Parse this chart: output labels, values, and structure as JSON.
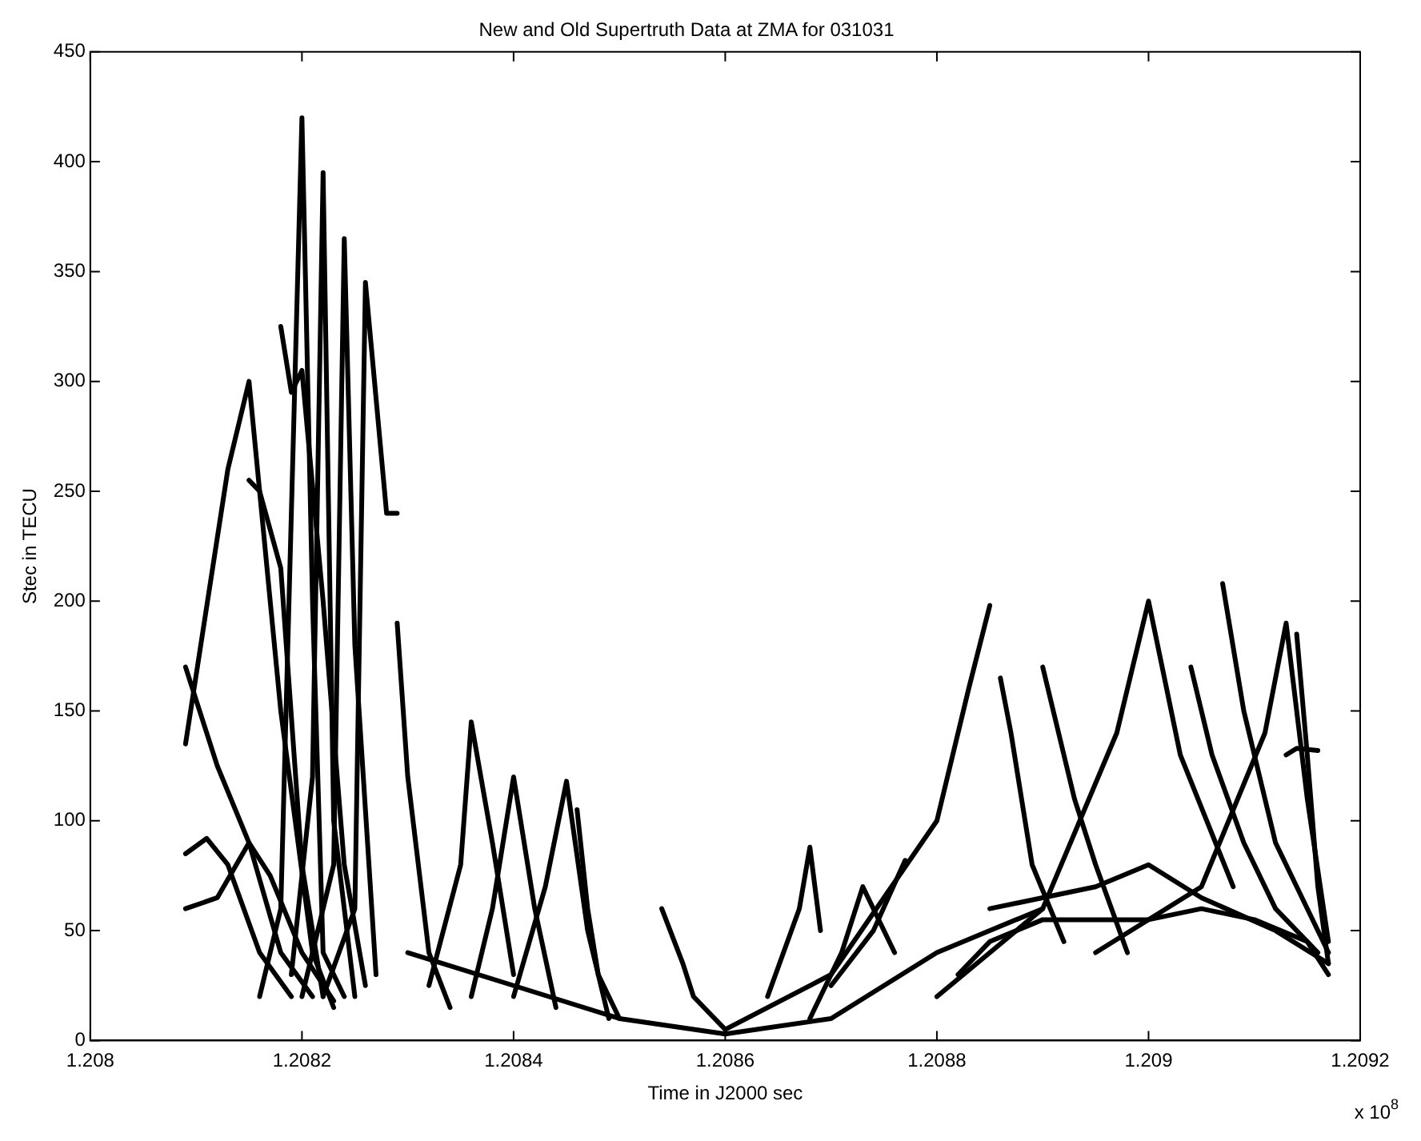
{
  "chart_data": {
    "type": "line",
    "title": "New and Old Supertruth Data at ZMA for 031031",
    "xlabel": "Time in J2000 sec",
    "ylabel": "Stec in TECU",
    "annotations": [
      "x 10$^{8}$"
    ],
    "color": "#000000",
    "marker": "none",
    "line_style": "solid",
    "grid": false,
    "legend": false,
    "xlim": [
      1.208,
      1.2092
    ],
    "xticks": [
      1.208,
      1.2082,
      1.2084,
      1.2086,
      1.2088,
      1.209,
      1.2092
    ],
    "ylim": [
      0,
      450
    ],
    "yticks": [
      0,
      50,
      100,
      150,
      200,
      250,
      300,
      350,
      400,
      450
    ],
    "series": [
      {
        "x": [
          1.20809,
          1.20813,
          1.20815,
          1.20818,
          1.20821,
          1.20823
        ],
        "values": [
          135,
          260,
          300,
          150,
          40,
          15
        ]
      },
      {
        "x": [
          1.20818,
          1.20819,
          1.2082,
          1.20822,
          1.20824,
          1.20826
        ],
        "values": [
          325,
          295,
          305,
          200,
          80,
          25
        ]
      },
      {
        "x": [
          1.20816,
          1.20818,
          1.2082,
          1.20821,
          1.20822,
          1.20824
        ],
        "values": [
          20,
          60,
          420,
          200,
          40,
          20
        ]
      },
      {
        "x": [
          1.20819,
          1.20821,
          1.20822,
          1.20823,
          1.20825
        ],
        "values": [
          30,
          120,
          395,
          100,
          20
        ]
      },
      {
        "x": [
          1.2082,
          1.20823,
          1.20824,
          1.20825,
          1.20827
        ],
        "values": [
          20,
          80,
          365,
          180,
          30
        ]
      },
      {
        "x": [
          1.20822,
          1.20825,
          1.20826,
          1.20828,
          1.20829
        ],
        "values": [
          20,
          60,
          345,
          240,
          240
        ]
      },
      {
        "x": [
          1.20829,
          1.2083,
          1.20832,
          1.20834
        ],
        "values": [
          190,
          120,
          40,
          15
        ]
      },
      {
        "x": [
          1.20815,
          1.20816,
          1.20818,
          1.2082,
          1.20822
        ],
        "values": [
          255,
          250,
          215,
          80,
          20
        ]
      },
      {
        "x": [
          1.20809,
          1.20812,
          1.20815,
          1.20818,
          1.20821
        ],
        "values": [
          170,
          125,
          90,
          40,
          20
        ]
      },
      {
        "x": [
          1.20809,
          1.20812,
          1.20815,
          1.20817,
          1.2082,
          1.20823
        ],
        "values": [
          60,
          65,
          90,
          75,
          40,
          18
        ]
      },
      {
        "x": [
          1.20809,
          1.20811,
          1.20813,
          1.20816,
          1.20819
        ],
        "values": [
          85,
          92,
          80,
          40,
          20
        ]
      },
      {
        "x": [
          1.20832,
          1.20835,
          1.20836,
          1.20838,
          1.2084
        ],
        "values": [
          25,
          80,
          145,
          90,
          30
        ]
      },
      {
        "x": [
          1.20836,
          1.20838,
          1.2084,
          1.20842,
          1.20844
        ],
        "values": [
          20,
          60,
          120,
          60,
          15
        ]
      },
      {
        "x": [
          1.2084,
          1.20843,
          1.20845,
          1.20847,
          1.20849
        ],
        "values": [
          20,
          70,
          118,
          50,
          10
        ]
      },
      {
        "x": [
          1.20846,
          1.20847,
          1.20848,
          1.2085
        ],
        "values": [
          105,
          60,
          30,
          10
        ]
      },
      {
        "x": [
          1.20854,
          1.20856,
          1.20857,
          1.2086
        ],
        "values": [
          60,
          35,
          20,
          5
        ]
      },
      {
        "x": [
          1.2083,
          1.2084,
          1.2085,
          1.2086,
          1.2087,
          1.2088,
          1.2089
        ],
        "values": [
          40,
          25,
          10,
          3,
          10,
          40,
          60
        ]
      },
      {
        "x": [
          1.20864,
          1.20867,
          1.20868,
          1.20869
        ],
        "values": [
          20,
          60,
          88,
          50
        ]
      },
      {
        "x": [
          1.20868,
          1.20871,
          1.20873,
          1.20876
        ],
        "values": [
          10,
          40,
          70,
          40
        ]
      },
      {
        "x": [
          1.2087,
          1.20874,
          1.20877
        ],
        "values": [
          25,
          50,
          82
        ]
      },
      {
        "x": [
          1.2086,
          1.2087,
          1.2088,
          1.20883,
          1.20885
        ],
        "values": [
          5,
          30,
          100,
          160,
          198
        ]
      },
      {
        "x": [
          1.20886,
          1.20887,
          1.20889,
          1.20892
        ],
        "values": [
          165,
          140,
          80,
          45
        ]
      },
      {
        "x": [
          1.2089,
          1.20893,
          1.20895,
          1.20898
        ],
        "values": [
          170,
          110,
          80,
          40
        ]
      },
      {
        "x": [
          1.2088,
          1.2089,
          1.20897,
          1.209,
          1.20903,
          1.20908
        ],
        "values": [
          20,
          60,
          140,
          200,
          130,
          70
        ]
      },
      {
        "x": [
          1.20907,
          1.20909,
          1.20912,
          1.20917
        ],
        "values": [
          208,
          150,
          90,
          40
        ]
      },
      {
        "x": [
          1.20895,
          1.20905,
          1.20911,
          1.20913,
          1.20915,
          1.20917
        ],
        "values": [
          40,
          70,
          140,
          190,
          110,
          45
        ]
      },
      {
        "x": [
          1.20914,
          1.20915,
          1.20916,
          1.20917
        ],
        "values": [
          185,
          130,
          70,
          35
        ]
      },
      {
        "x": [
          1.20882,
          1.20885,
          1.2089,
          1.20895,
          1.209,
          1.20905,
          1.2091,
          1.20915,
          1.20917
        ],
        "values": [
          30,
          45,
          55,
          55,
          55,
          60,
          55,
          45,
          30
        ]
      },
      {
        "x": [
          1.20885,
          1.20895,
          1.209,
          1.20905,
          1.20912,
          1.20917
        ],
        "values": [
          60,
          70,
          80,
          65,
          50,
          35
        ]
      },
      {
        "x": [
          1.20904,
          1.20906,
          1.20909,
          1.20912,
          1.20916
        ],
        "values": [
          170,
          130,
          90,
          60,
          40
        ]
      },
      {
        "x": [
          1.20913,
          1.20914,
          1.20916
        ],
        "values": [
          130,
          133,
          132
        ]
      }
    ]
  }
}
